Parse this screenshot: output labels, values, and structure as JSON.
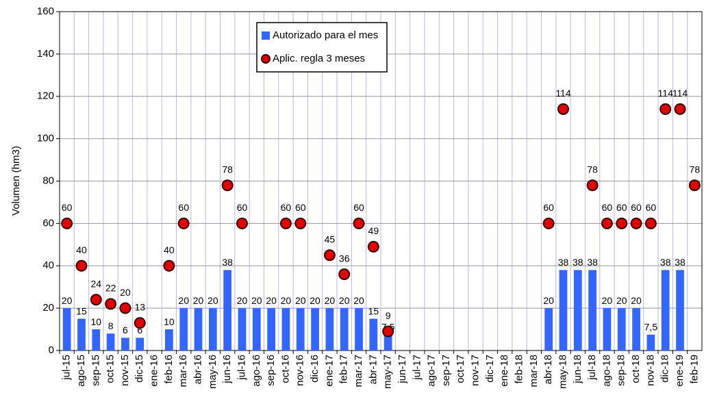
{
  "chart_data": {
    "type": "bar_scatter",
    "y_label": "Volumen (hm3)",
    "categories": [
      "jul-15",
      "ago-15",
      "sep-15",
      "oct-15",
      "nov-15",
      "dic-15",
      "ene-16",
      "feb-16",
      "mar-16",
      "abr-16",
      "may-16",
      "jun-16",
      "jul-16",
      "ago-16",
      "sep-16",
      "oct-16",
      "nov-16",
      "dic-16",
      "ene-17",
      "feb-17",
      "mar-17",
      "abr-17",
      "may-17",
      "jun-17",
      "jul-17",
      "ago-17",
      "sep-17",
      "oct-17",
      "nov-17",
      "dic-17",
      "ene-18",
      "feb-18",
      "mar-18",
      "abr-18",
      "may-18",
      "jun-18",
      "jul-18",
      "ago-18",
      "sep-18",
      "oct-18",
      "nov-18",
      "dic-18",
      "ene-19",
      "feb-19"
    ],
    "series": [
      {
        "name": "Autorizado para el mes",
        "type": "bar",
        "color": "#3366ff",
        "values": [
          20,
          15,
          10,
          8,
          6,
          6,
          null,
          10,
          20,
          20,
          20,
          38,
          20,
          20,
          20,
          20,
          20,
          20,
          20,
          20,
          20,
          15,
          7.5,
          null,
          null,
          null,
          null,
          null,
          null,
          null,
          null,
          null,
          null,
          20,
          38,
          38,
          38,
          20,
          20,
          20,
          7.5,
          38,
          38,
          null
        ],
        "value_labels": [
          "20",
          "15",
          "10",
          "8",
          "6",
          "6",
          null,
          "10",
          "20",
          "20",
          "20",
          "38",
          "20",
          "20",
          "20",
          "20",
          "20",
          "20",
          "20",
          "20",
          "20",
          "15",
          "7,5",
          null,
          null,
          null,
          null,
          null,
          null,
          null,
          null,
          null,
          null,
          "20",
          "38",
          "38",
          "38",
          "20",
          "20",
          "20",
          "7,5",
          "38",
          "38",
          null
        ]
      },
      {
        "name": "Aplic. regla 3 meses",
        "type": "scatter",
        "color": "#e00000",
        "values": [
          60,
          40,
          24,
          22,
          20,
          13,
          null,
          40,
          60,
          null,
          null,
          78,
          60,
          null,
          null,
          60,
          60,
          null,
          45,
          36,
          60,
          49,
          9,
          null,
          null,
          null,
          null,
          null,
          null,
          null,
          null,
          null,
          null,
          60,
          114,
          null,
          78,
          60,
          60,
          60,
          60,
          114,
          114,
          78
        ]
      }
    ],
    "ylim": [
      0,
      160
    ],
    "yticks": [
      0,
      20,
      40,
      60,
      80,
      100,
      120,
      140,
      160
    ],
    "grid": true
  }
}
